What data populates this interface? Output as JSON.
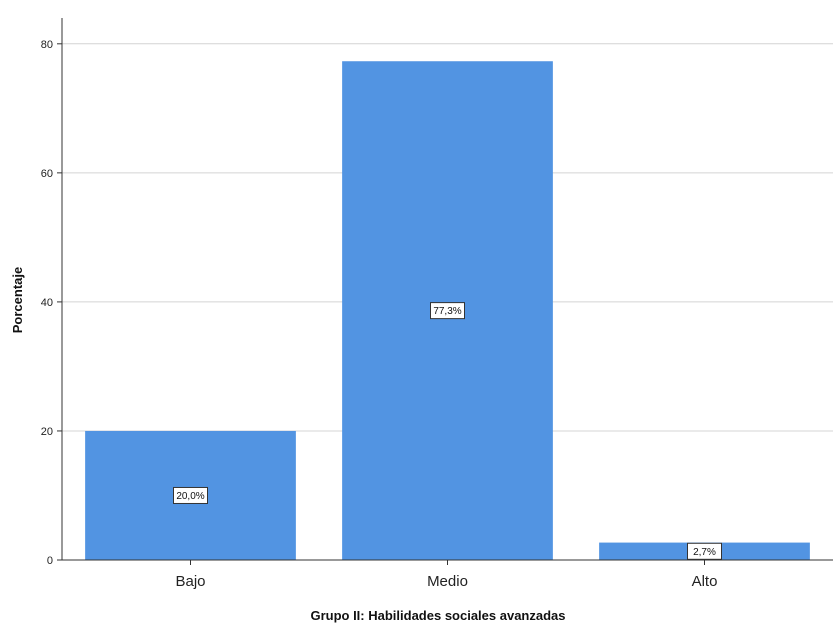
{
  "chart_data": {
    "type": "bar",
    "title": "",
    "xlabel": "Grupo II: Habilidades sociales avanzadas",
    "ylabel": "Porcentaje",
    "categories": [
      "Bajo",
      "Medio",
      "Alto"
    ],
    "values": [
      20.0,
      77.3,
      2.7
    ],
    "data_labels": [
      "20,0%",
      "77,3%",
      "2,7%"
    ],
    "yticks": [
      0,
      20,
      40,
      60,
      80
    ],
    "ylim": [
      0,
      84
    ],
    "grid": true,
    "legend": "none",
    "bar_color": "#5294E2"
  }
}
